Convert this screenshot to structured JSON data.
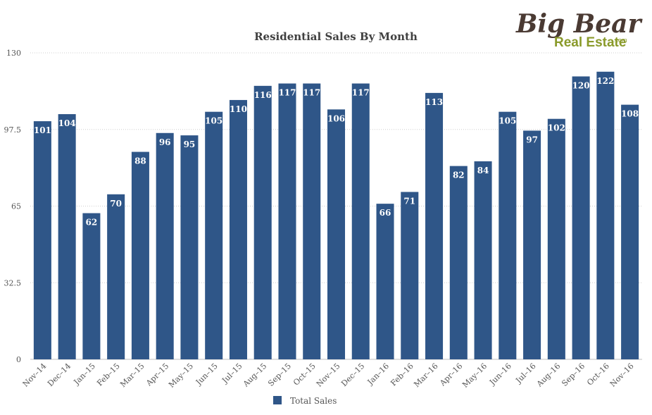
{
  "logo": {
    "line1": "Big Bear",
    "line2": "Real Estate",
    "suffix": ".com"
  },
  "chart_data": {
    "type": "bar",
    "title": "Residential Sales By Month",
    "xlabel": "",
    "ylabel": "",
    "ylim": [
      0,
      130
    ],
    "yticks": [
      0,
      32.5,
      65,
      97.5,
      130
    ],
    "grid": true,
    "legend_placement": "bottom-center",
    "categories": [
      "Nov–14",
      "Dec–14",
      "Jan–15",
      "Feb–15",
      "Mar–15",
      "Apr–15",
      "May–15",
      "Jun–15",
      "Jul–15",
      "Aug–15",
      "Sep–15",
      "Oct–15",
      "Nov–15",
      "Dec–15",
      "Jan–16",
      "Feb–16",
      "Mar–16",
      "Apr–16",
      "May–16",
      "Jun–16",
      "Jul–16",
      "Aug–16",
      "Sep–16",
      "Oct–16",
      "Nov–16"
    ],
    "series": [
      {
        "name": "Total Sales",
        "color": "#2f5688",
        "values": [
          101,
          104,
          62,
          70,
          88,
          96,
          95,
          105,
          110,
          116,
          117,
          117,
          106,
          117,
          66,
          71,
          113,
          82,
          84,
          105,
          97,
          102,
          120,
          122,
          108
        ]
      }
    ]
  }
}
